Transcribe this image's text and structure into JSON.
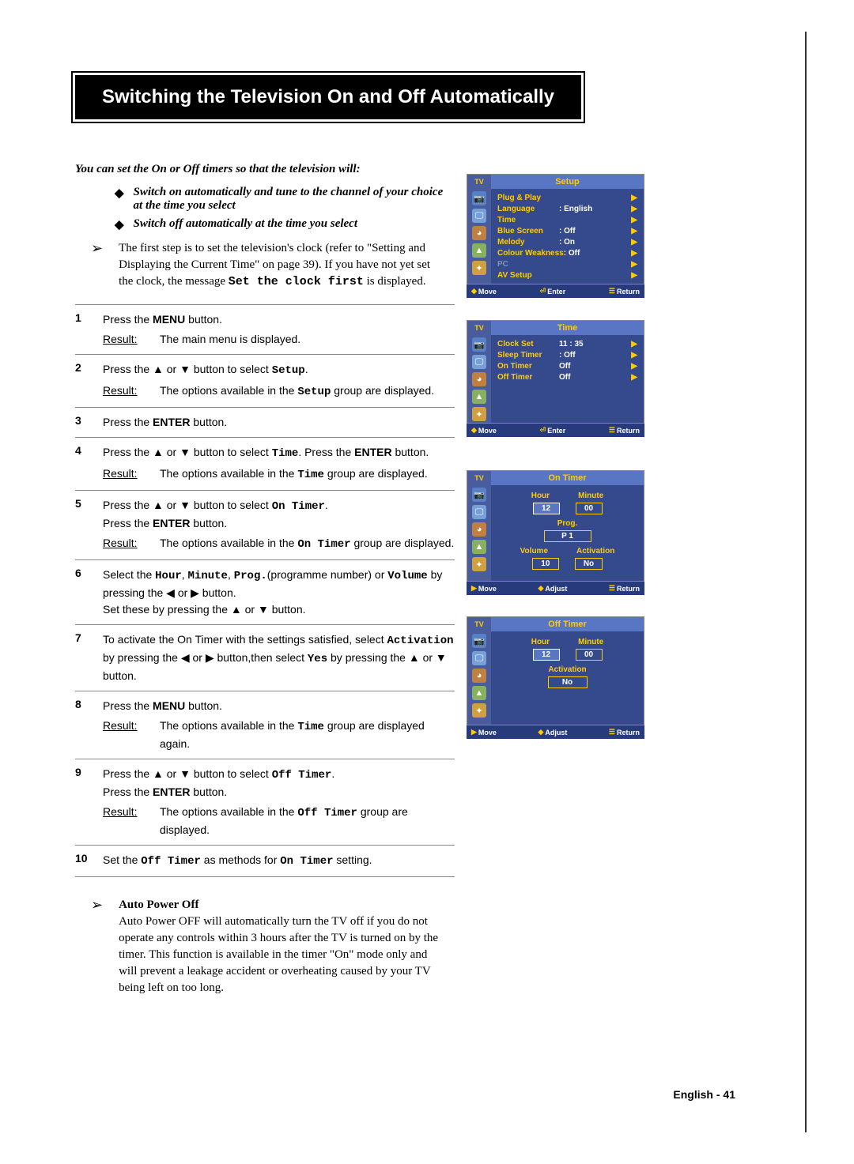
{
  "title": "Switching the Television On and Off Automatically",
  "intro": "You can set the On or Off timers so that the television will:",
  "bullets": [
    "Switch on automatically and tune to the channel of your choice at the time you select",
    "Switch off automatically at the time you select"
  ],
  "note": {
    "text_before": "The first step is to set the television's clock (refer to \"Setting and Displaying the Current Time\" on page 39). If you have not yet set the clock, the message ",
    "mono": "Set the clock first",
    "text_after": " is displayed."
  },
  "steps": [
    {
      "num": "1",
      "body_html": "Press the <b>MENU</b> button.",
      "result": "The main menu is displayed."
    },
    {
      "num": "2",
      "body_html": "Press the ▲ or ▼ button to select <span class='mono'>Setup</span>.",
      "result_html": "The options available in the <span class='mono'>Setup</span> group are displayed."
    },
    {
      "num": "3",
      "body_html": "Press the <b>ENTER</b> button."
    },
    {
      "num": "4",
      "body_html": "Press the ▲ or ▼ button to select <span class='mono'>Time</span>. Press the <b>ENTER</b> button.",
      "result_html": "The options available in the <span class='mono'>Time</span> group are displayed."
    },
    {
      "num": "5",
      "body_html": "Press the ▲ or ▼ button to select <span class='mono'>On Timer</span>.<br>Press the <b>ENTER</b> button.",
      "result_html": "The options available in the <span class='mono'>On Timer</span> group are displayed."
    },
    {
      "num": "6",
      "body_html": "Select the <span class='mono'>Hour</span>, <span class='mono'>Minute</span>, <span class='mono'>Prog.</span>(programme number) or <span class='mono'>Volume</span> by pressing the ◀ or ▶ button.<br>Set these by pressing the ▲ or ▼ button."
    },
    {
      "num": "7",
      "body_html": "To activate the On Timer with the settings satisfied, select <span class='mono'>Activation</span> by pressing the ◀ or ▶ button,then select <span class='mono'>Yes</span> by pressing the ▲ or ▼ button."
    },
    {
      "num": "8",
      "body_html": "Press the <b>MENU</b> button.",
      "result_html": "The options available in the <span class='mono'>Time</span> group are displayed again."
    },
    {
      "num": "9",
      "body_html": "Press the ▲ or ▼ button to select <span class='mono'>Off Timer</span>.<br>Press the <b>ENTER</b> button.",
      "result_html": "The options available in the <span class='mono'>Off Timer</span> group are displayed."
    },
    {
      "num": "10",
      "body_html": "Set the <span class='mono'>Off Timer</span> as methods for <span class='mono'>On Timer</span> setting."
    }
  ],
  "result_label": "Result:",
  "auto_power_off": {
    "title": "Auto Power Off",
    "text": "Auto Power OFF will automatically turn the TV off if you do not operate any controls within 3 hours after the TV is turned on by the timer. This function is available in the timer \"On\" mode only and will prevent a leakage accident or overheating caused by your TV being left on too long."
  },
  "footer": "English - 41",
  "osd": {
    "tv_label": "TV",
    "move": "Move",
    "enter": "Enter",
    "adjust": "Adjust",
    "return": "Return",
    "setup": {
      "title": "Setup",
      "rows": [
        {
          "label": "Plug & Play",
          "val": ""
        },
        {
          "label": "Language",
          "val": ": English"
        },
        {
          "label": "Time",
          "val": ""
        },
        {
          "label": "Blue Screen",
          "val": ": Off"
        },
        {
          "label": "Melody",
          "val": ": On"
        },
        {
          "label": "Colour Weakness",
          "val": ": Off"
        },
        {
          "label": "PC",
          "val": "",
          "dim": true
        },
        {
          "label": "AV Setup",
          "val": ""
        }
      ]
    },
    "time": {
      "title": "Time",
      "rows": [
        {
          "label": "Clock Set",
          "val": "11 : 35"
        },
        {
          "label": "Sleep Timer",
          "val": ": Off"
        },
        {
          "label": "On Timer",
          "val": "Off"
        },
        {
          "label": "Off Timer",
          "val": "Off"
        }
      ]
    },
    "on_timer": {
      "title": "On Timer",
      "hour_label": "Hour",
      "minute_label": "Minute",
      "hour": "12",
      "minute": "00",
      "prog_label": "Prog.",
      "prog": "P  1",
      "vol_label": "Volume",
      "act_label": "Activation",
      "volume": "10",
      "activation": "No"
    },
    "off_timer": {
      "title": "Off Timer",
      "hour_label": "Hour",
      "minute_label": "Minute",
      "hour": "12",
      "minute": "00",
      "act_label": "Activation",
      "activation": "No"
    }
  }
}
